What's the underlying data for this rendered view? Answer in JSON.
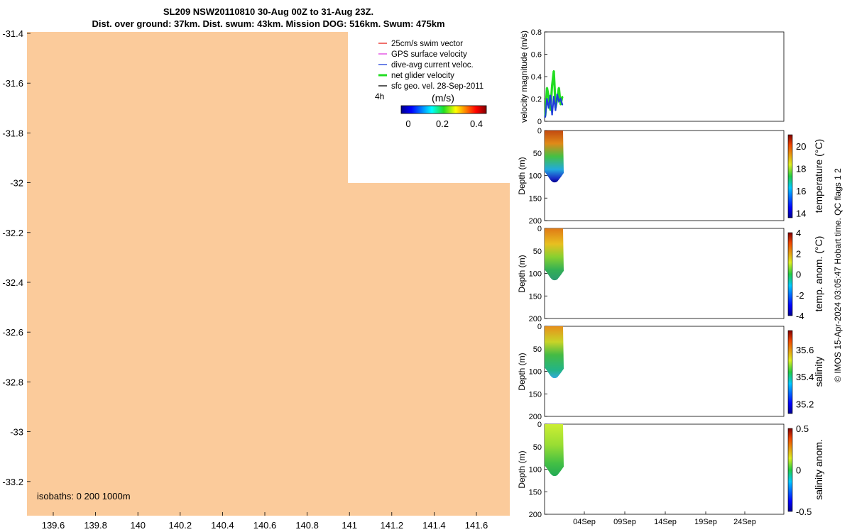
{
  "title_line1": "SL209 NSW20110810 30-Aug 00Z to 31-Aug 23Z.",
  "title_line2": "Dist. over ground: 37km. Dist. swum: 43km. Mission DOG: 516km. Swum: 475km",
  "map": {
    "lat_ticks": [
      "-31.4",
      "-31.6",
      "-31.8",
      "-32",
      "-32.2",
      "-32.4",
      "-32.6",
      "-32.8",
      "-33",
      "-33.2"
    ],
    "lon_ticks": [
      "139.6",
      "139.8",
      "140",
      "140.2",
      "140.4",
      "140.6",
      "140.8",
      "141",
      "141.2",
      "141.4",
      "141.6"
    ],
    "isobaths_label": "isobaths: 0   200  1000m",
    "land_color": "#fbcb9b",
    "legend": [
      {
        "label": "25cm/s swim vector",
        "color": "#e8241c"
      },
      {
        "label": "GPS surface velocity",
        "color": "#e040e0"
      },
      {
        "label": "dive-avg current veloc.",
        "color": "#1f3fd8"
      },
      {
        "label": "net glider velocity",
        "color": "#22dd22"
      },
      {
        "label": "sfc geo. vel. 28-Sep-2011",
        "color": "#000000"
      }
    ],
    "legend_time": "4h",
    "colorbar_title": "(m/s)",
    "colorbar_ticks": [
      "0",
      "0.2",
      "0.4"
    ]
  },
  "chart_data": [
    {
      "type": "line",
      "title": "",
      "ylabel": "velocity magnitude (m/s)",
      "ylim": [
        0,
        0.8
      ],
      "yticks": [
        "0",
        "0.2",
        "0.4",
        "0.6",
        "0.8"
      ],
      "series": [
        {
          "name": "net glider velocity",
          "color": "#22dd22",
          "x": [
            30.0,
            30.2,
            30.4,
            30.6,
            30.8,
            31.0,
            31.1,
            31.2,
            31.4,
            31.6,
            31.8,
            32.0
          ],
          "values": [
            0.05,
            0.3,
            0.22,
            0.1,
            0.32,
            0.45,
            0.3,
            0.12,
            0.2,
            0.3,
            0.15,
            0.22
          ]
        },
        {
          "name": "dive-avg current veloc.",
          "color": "#1f3fd8",
          "x": [
            30.0,
            30.2,
            30.4,
            30.6,
            30.8,
            31.0,
            31.2,
            31.4,
            31.6,
            31.8,
            32.0
          ],
          "values": [
            0.04,
            0.2,
            0.12,
            0.23,
            0.06,
            0.22,
            0.1,
            0.24,
            0.18,
            0.2,
            0.15
          ]
        }
      ]
    },
    {
      "type": "heatmap",
      "ylabel": "Depth (m)",
      "yticks": [
        "0",
        "50",
        "100",
        "150",
        "200"
      ],
      "colorbar_label": "temperature (°C)",
      "colorbar_ticks": [
        "14",
        "16",
        "18",
        "20"
      ],
      "x_range": [
        "30-Aug",
        "31-Aug"
      ],
      "depth_max_m": 110
    },
    {
      "type": "heatmap",
      "ylabel": "Depth (m)",
      "yticks": [
        "0",
        "50",
        "100",
        "150",
        "200"
      ],
      "colorbar_label": "temp. anom. (°C)",
      "colorbar_ticks": [
        "-4",
        "-2",
        "0",
        "2",
        "4"
      ],
      "x_range": [
        "30-Aug",
        "31-Aug"
      ],
      "depth_max_m": 110
    },
    {
      "type": "heatmap",
      "ylabel": "Depth (m)",
      "yticks": [
        "0",
        "50",
        "100",
        "150",
        "200"
      ],
      "colorbar_label": "salinity",
      "colorbar_ticks": [
        "35.2",
        "35.4",
        "35.6"
      ],
      "x_range": [
        "30-Aug",
        "31-Aug"
      ],
      "depth_max_m": 110
    },
    {
      "type": "heatmap",
      "ylabel": "Depth (m)",
      "yticks": [
        "0",
        "50",
        "100",
        "150",
        "200"
      ],
      "colorbar_label": "salinity anom.",
      "colorbar_ticks": [
        "-0.5",
        "0",
        "0.5"
      ],
      "x_range": [
        "30-Aug",
        "31-Aug"
      ],
      "depth_max_m": 110,
      "xticks": [
        "04Sep",
        "09Sep",
        "14Sep",
        "19Sep",
        "24Sep"
      ]
    }
  ],
  "footer": "© IMOS 15-Apr-2024 03:05:47 Hobart time. QC flags 1  2"
}
